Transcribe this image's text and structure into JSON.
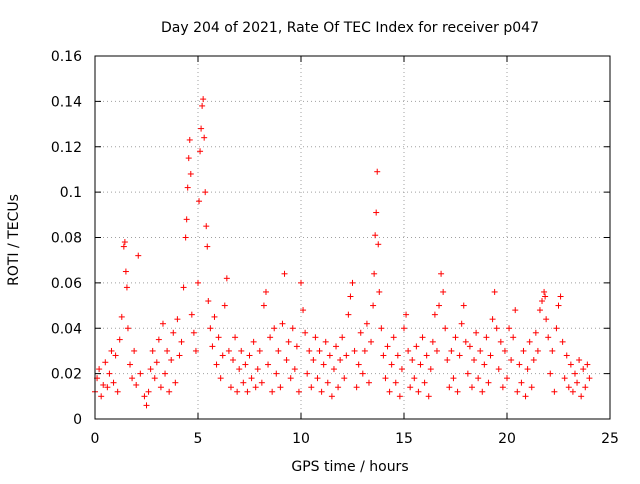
{
  "chart_data": {
    "type": "scatter",
    "title": "Day 204 of 2021, Rate Of TEC Index for receiver p047",
    "xlabel": "GPS time / hours",
    "ylabel": "ROTI / TECUs",
    "xlim": [
      0,
      25
    ],
    "ylim": [
      0,
      0.16
    ],
    "xticks": [
      0,
      5,
      10,
      15,
      20,
      25
    ],
    "yticks": [
      0,
      0.02,
      0.04,
      0.06,
      0.08,
      0.1,
      0.12,
      0.14,
      0.16
    ],
    "xtick_labels": [
      "0",
      "5",
      "10",
      "15",
      "20",
      "25"
    ],
    "ytick_labels": [
      "0",
      "0.02",
      "0.04",
      "0.06",
      "0.08",
      "0.1",
      "0.12",
      "0.14",
      "0.16"
    ],
    "grid": true,
    "marker": "+",
    "color": "#ff0000",
    "series": [
      {
        "name": "ROTI",
        "note": "Dense band of points mostly between 0.005 and 0.035 TECU across 0-24 h; representative samples including peaks",
        "points": [
          [
            0.0,
            0.012
          ],
          [
            0.1,
            0.018
          ],
          [
            0.2,
            0.022
          ],
          [
            0.3,
            0.01
          ],
          [
            0.4,
            0.015
          ],
          [
            0.5,
            0.025
          ],
          [
            0.6,
            0.014
          ],
          [
            0.7,
            0.02
          ],
          [
            0.8,
            0.03
          ],
          [
            0.9,
            0.016
          ],
          [
            1.0,
            0.028
          ],
          [
            1.1,
            0.012
          ],
          [
            1.2,
            0.035
          ],
          [
            1.3,
            0.045
          ],
          [
            1.4,
            0.076
          ],
          [
            1.45,
            0.078
          ],
          [
            1.5,
            0.065
          ],
          [
            1.55,
            0.058
          ],
          [
            1.6,
            0.04
          ],
          [
            1.7,
            0.024
          ],
          [
            1.8,
            0.018
          ],
          [
            1.9,
            0.03
          ],
          [
            2.0,
            0.015
          ],
          [
            2.1,
            0.072
          ],
          [
            2.2,
            0.02
          ],
          [
            2.4,
            0.01
          ],
          [
            2.5,
            0.006
          ],
          [
            2.6,
            0.012
          ],
          [
            2.7,
            0.022
          ],
          [
            2.8,
            0.03
          ],
          [
            2.9,
            0.018
          ],
          [
            3.0,
            0.025
          ],
          [
            3.1,
            0.035
          ],
          [
            3.2,
            0.014
          ],
          [
            3.3,
            0.042
          ],
          [
            3.4,
            0.02
          ],
          [
            3.5,
            0.03
          ],
          [
            3.6,
            0.012
          ],
          [
            3.7,
            0.026
          ],
          [
            3.8,
            0.038
          ],
          [
            3.9,
            0.016
          ],
          [
            4.0,
            0.044
          ],
          [
            4.1,
            0.028
          ],
          [
            4.2,
            0.034
          ],
          [
            4.3,
            0.058
          ],
          [
            4.4,
            0.08
          ],
          [
            4.45,
            0.088
          ],
          [
            4.5,
            0.102
          ],
          [
            4.55,
            0.115
          ],
          [
            4.6,
            0.123
          ],
          [
            4.65,
            0.108
          ],
          [
            4.7,
            0.046
          ],
          [
            4.8,
            0.038
          ],
          [
            4.9,
            0.03
          ],
          [
            5.0,
            0.06
          ],
          [
            5.05,
            0.096
          ],
          [
            5.1,
            0.118
          ],
          [
            5.15,
            0.128
          ],
          [
            5.2,
            0.138
          ],
          [
            5.25,
            0.141
          ],
          [
            5.3,
            0.124
          ],
          [
            5.35,
            0.1
          ],
          [
            5.4,
            0.085
          ],
          [
            5.45,
            0.076
          ],
          [
            5.5,
            0.052
          ],
          [
            5.6,
            0.04
          ],
          [
            5.7,
            0.032
          ],
          [
            5.8,
            0.045
          ],
          [
            5.9,
            0.024
          ],
          [
            6.0,
            0.036
          ],
          [
            6.1,
            0.018
          ],
          [
            6.2,
            0.028
          ],
          [
            6.3,
            0.05
          ],
          [
            6.4,
            0.062
          ],
          [
            6.5,
            0.03
          ],
          [
            6.6,
            0.014
          ],
          [
            6.7,
            0.026
          ],
          [
            6.8,
            0.036
          ],
          [
            6.9,
            0.012
          ],
          [
            7.0,
            0.022
          ],
          [
            7.1,
            0.03
          ],
          [
            7.2,
            0.016
          ],
          [
            7.3,
            0.024
          ],
          [
            7.4,
            0.012
          ],
          [
            7.5,
            0.028
          ],
          [
            7.6,
            0.018
          ],
          [
            7.7,
            0.034
          ],
          [
            7.8,
            0.014
          ],
          [
            7.9,
            0.022
          ],
          [
            8.0,
            0.03
          ],
          [
            8.1,
            0.016
          ],
          [
            8.2,
            0.05
          ],
          [
            8.3,
            0.056
          ],
          [
            8.4,
            0.024
          ],
          [
            8.5,
            0.036
          ],
          [
            8.6,
            0.012
          ],
          [
            8.7,
            0.04
          ],
          [
            8.8,
            0.02
          ],
          [
            8.9,
            0.03
          ],
          [
            9.0,
            0.014
          ],
          [
            9.1,
            0.042
          ],
          [
            9.2,
            0.064
          ],
          [
            9.3,
            0.026
          ],
          [
            9.4,
            0.034
          ],
          [
            9.5,
            0.018
          ],
          [
            9.6,
            0.04
          ],
          [
            9.7,
            0.022
          ],
          [
            9.8,
            0.032
          ],
          [
            9.9,
            0.012
          ],
          [
            10.0,
            0.06
          ],
          [
            10.1,
            0.048
          ],
          [
            10.2,
            0.038
          ],
          [
            10.3,
            0.02
          ],
          [
            10.4,
            0.03
          ],
          [
            10.5,
            0.014
          ],
          [
            10.6,
            0.026
          ],
          [
            10.7,
            0.036
          ],
          [
            10.8,
            0.018
          ],
          [
            10.9,
            0.03
          ],
          [
            11.0,
            0.012
          ],
          [
            11.1,
            0.024
          ],
          [
            11.2,
            0.034
          ],
          [
            11.3,
            0.016
          ],
          [
            11.4,
            0.028
          ],
          [
            11.5,
            0.01
          ],
          [
            11.6,
            0.022
          ],
          [
            11.7,
            0.032
          ],
          [
            11.8,
            0.014
          ],
          [
            11.9,
            0.026
          ],
          [
            12.0,
            0.036
          ],
          [
            12.1,
            0.018
          ],
          [
            12.2,
            0.028
          ],
          [
            12.3,
            0.046
          ],
          [
            12.4,
            0.054
          ],
          [
            12.5,
            0.06
          ],
          [
            12.6,
            0.03
          ],
          [
            12.7,
            0.014
          ],
          [
            12.8,
            0.024
          ],
          [
            12.9,
            0.038
          ],
          [
            13.0,
            0.02
          ],
          [
            13.1,
            0.03
          ],
          [
            13.2,
            0.042
          ],
          [
            13.3,
            0.016
          ],
          [
            13.4,
            0.034
          ],
          [
            13.5,
            0.05
          ],
          [
            13.55,
            0.064
          ],
          [
            13.6,
            0.081
          ],
          [
            13.65,
            0.091
          ],
          [
            13.7,
            0.109
          ],
          [
            13.75,
            0.077
          ],
          [
            13.8,
            0.056
          ],
          [
            13.9,
            0.04
          ],
          [
            14.0,
            0.028
          ],
          [
            14.1,
            0.018
          ],
          [
            14.2,
            0.032
          ],
          [
            14.3,
            0.012
          ],
          [
            14.4,
            0.024
          ],
          [
            14.5,
            0.036
          ],
          [
            14.6,
            0.016
          ],
          [
            14.7,
            0.028
          ],
          [
            14.8,
            0.01
          ],
          [
            14.9,
            0.022
          ],
          [
            15.0,
            0.04
          ],
          [
            15.1,
            0.046
          ],
          [
            15.2,
            0.03
          ],
          [
            15.3,
            0.014
          ],
          [
            15.4,
            0.026
          ],
          [
            15.5,
            0.018
          ],
          [
            15.6,
            0.032
          ],
          [
            15.7,
            0.012
          ],
          [
            15.8,
            0.024
          ],
          [
            15.9,
            0.036
          ],
          [
            16.0,
            0.016
          ],
          [
            16.1,
            0.028
          ],
          [
            16.2,
            0.01
          ],
          [
            16.3,
            0.022
          ],
          [
            16.4,
            0.034
          ],
          [
            16.5,
            0.046
          ],
          [
            16.6,
            0.03
          ],
          [
            16.7,
            0.05
          ],
          [
            16.8,
            0.064
          ],
          [
            16.9,
            0.056
          ],
          [
            17.0,
            0.04
          ],
          [
            17.1,
            0.026
          ],
          [
            17.2,
            0.014
          ],
          [
            17.3,
            0.03
          ],
          [
            17.4,
            0.018
          ],
          [
            17.5,
            0.036
          ],
          [
            17.6,
            0.012
          ],
          [
            17.7,
            0.028
          ],
          [
            17.8,
            0.042
          ],
          [
            17.9,
            0.05
          ],
          [
            18.0,
            0.034
          ],
          [
            18.1,
            0.02
          ],
          [
            18.2,
            0.032
          ],
          [
            18.3,
            0.014
          ],
          [
            18.4,
            0.026
          ],
          [
            18.5,
            0.038
          ],
          [
            18.6,
            0.018
          ],
          [
            18.7,
            0.03
          ],
          [
            18.8,
            0.012
          ],
          [
            18.9,
            0.024
          ],
          [
            19.0,
            0.036
          ],
          [
            19.1,
            0.016
          ],
          [
            19.2,
            0.028
          ],
          [
            19.3,
            0.044
          ],
          [
            19.4,
            0.056
          ],
          [
            19.5,
            0.04
          ],
          [
            19.6,
            0.022
          ],
          [
            19.7,
            0.034
          ],
          [
            19.8,
            0.014
          ],
          [
            19.9,
            0.03
          ],
          [
            20.0,
            0.018
          ],
          [
            20.1,
            0.04
          ],
          [
            20.2,
            0.026
          ],
          [
            20.3,
            0.036
          ],
          [
            20.4,
            0.048
          ],
          [
            20.5,
            0.012
          ],
          [
            20.6,
            0.024
          ],
          [
            20.7,
            0.016
          ],
          [
            20.8,
            0.03
          ],
          [
            20.9,
            0.01
          ],
          [
            21.0,
            0.022
          ],
          [
            21.1,
            0.034
          ],
          [
            21.2,
            0.014
          ],
          [
            21.3,
            0.026
          ],
          [
            21.4,
            0.038
          ],
          [
            21.5,
            0.03
          ],
          [
            21.6,
            0.048
          ],
          [
            21.7,
            0.052
          ],
          [
            21.8,
            0.056
          ],
          [
            21.85,
            0.054
          ],
          [
            21.9,
            0.044
          ],
          [
            22.0,
            0.036
          ],
          [
            22.1,
            0.02
          ],
          [
            22.2,
            0.03
          ],
          [
            22.3,
            0.012
          ],
          [
            22.4,
            0.04
          ],
          [
            22.5,
            0.05
          ],
          [
            22.6,
            0.054
          ],
          [
            22.7,
            0.034
          ],
          [
            22.8,
            0.018
          ],
          [
            22.9,
            0.028
          ],
          [
            23.0,
            0.014
          ],
          [
            23.1,
            0.024
          ],
          [
            23.2,
            0.012
          ],
          [
            23.3,
            0.02
          ],
          [
            23.4,
            0.016
          ],
          [
            23.5,
            0.026
          ],
          [
            23.6,
            0.01
          ],
          [
            23.7,
            0.022
          ],
          [
            23.8,
            0.014
          ],
          [
            23.9,
            0.024
          ],
          [
            24.0,
            0.018
          ]
        ]
      }
    ]
  }
}
